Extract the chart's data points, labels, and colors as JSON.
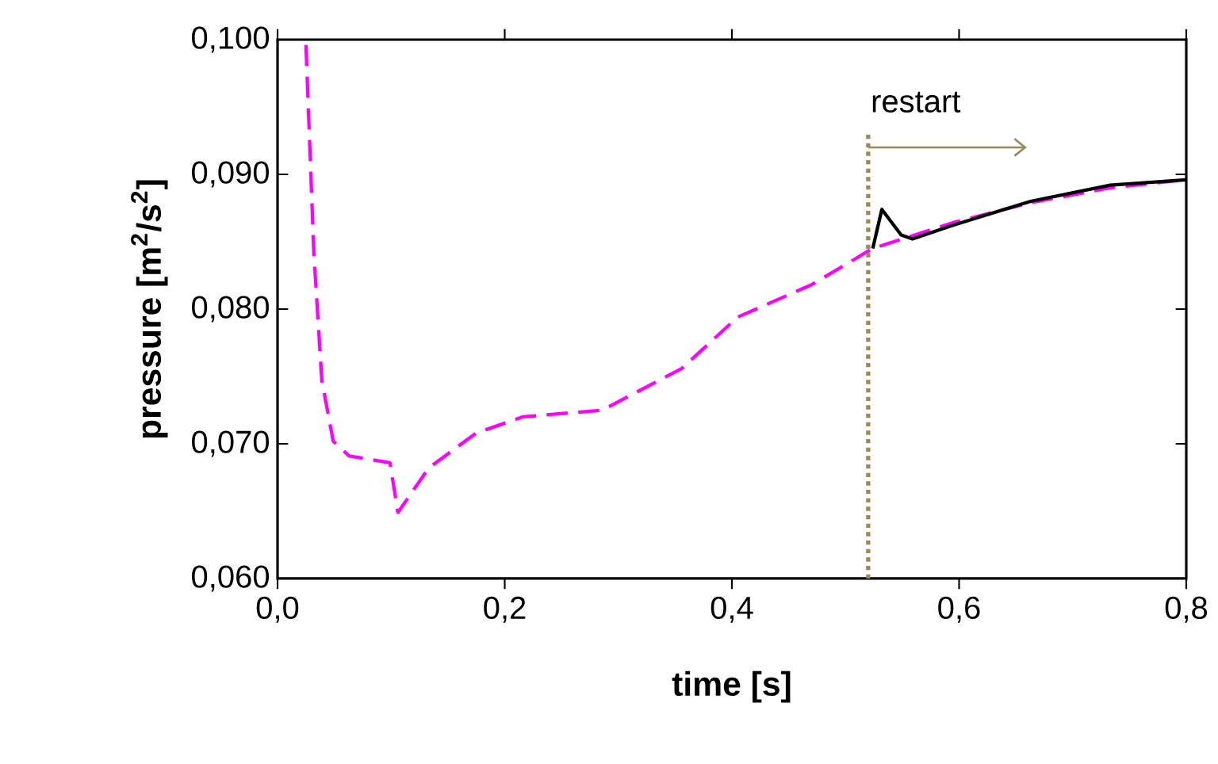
{
  "chart_data": {
    "type": "line",
    "xlabel": "time [s]",
    "ylabel": "pressure [m$^{2}$/s$^{2}$]",
    "xlim": [
      0,
      0.8
    ],
    "ylim": [
      0.06,
      0.1
    ],
    "xticks": [
      {
        "value": 0,
        "label": "0,0"
      },
      {
        "value": 0.2,
        "label": "0,2"
      },
      {
        "value": 0.4,
        "label": "0,4"
      },
      {
        "value": 0.6,
        "label": "0,6"
      },
      {
        "value": 0.8,
        "label": "0,8"
      }
    ],
    "yticks": [
      {
        "value": 0.06,
        "label": "0,060"
      },
      {
        "value": 0.07,
        "label": "0,070"
      },
      {
        "value": 0.08,
        "label": "0,080"
      },
      {
        "value": 0.09,
        "label": "0,090"
      },
      {
        "value": 0.1,
        "label": "0,100"
      }
    ],
    "grid": false,
    "marker": "none",
    "series": [
      {
        "color": "#ff00ff",
        "line_style": "dashed",
        "x": [
          0.025,
          0.032,
          0.039,
          0.049,
          0.063,
          0.084,
          0.099,
          0.106,
          0.133,
          0.175,
          0.216,
          0.286,
          0.356,
          0.405,
          0.47,
          0.524,
          0.594,
          0.663,
          0.733,
          0.8
        ],
        "values": [
          0.0996,
          0.0841,
          0.0747,
          0.0702,
          0.0691,
          0.0688,
          0.0686,
          0.0649,
          0.0682,
          0.0708,
          0.072,
          0.0725,
          0.0756,
          0.0794,
          0.0818,
          0.0845,
          0.0864,
          0.0879,
          0.089,
          0.0896
        ]
      },
      {
        "color": "#000000",
        "line_style": "solid",
        "x": [
          0.524,
          0.532,
          0.549,
          0.559,
          0.594,
          0.663,
          0.733,
          0.8
        ],
        "values": [
          0.0845,
          0.0874,
          0.0855,
          0.0852,
          0.0862,
          0.088,
          0.0892,
          0.0896
        ]
      }
    ],
    "ref_lines": [
      {
        "axis": "x",
        "value": 0.52,
        "label": "restart",
        "color": "#968a5a",
        "line_style": "dotted"
      }
    ]
  }
}
